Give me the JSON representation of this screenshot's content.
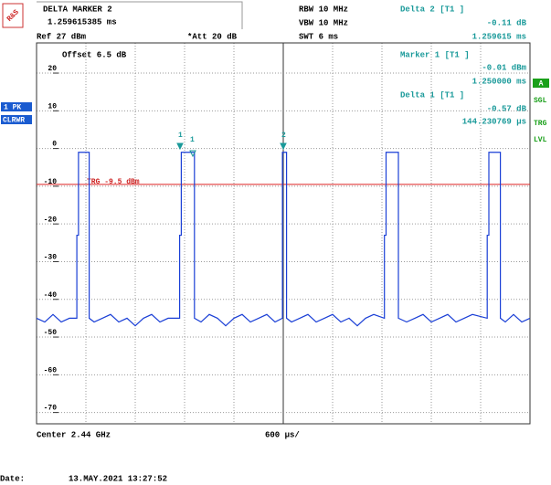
{
  "logo": "R&S",
  "header": {
    "marker_title": "DELTA MARKER 2",
    "marker_value": "1.259615385 ms",
    "rbw": "RBW 10 MHz",
    "vbw": "VBW 10 MHz",
    "swt": "SWT 6 ms",
    "ref": "Ref 27 dBm",
    "att": "*Att 20 dB",
    "offset": "Offset 6.5 dB"
  },
  "readouts": [
    "Delta 2 [T1 ]",
    "-0.11 dB",
    "1.259615 ms",
    "Marker 1 [T1 ]",
    "-0.01 dBm",
    "1.250000 ms",
    "Delta 1 [T1 ]",
    "-0.57 dB",
    "144.230769 µs"
  ],
  "side": {
    "trace_detector": "1 PK",
    "trace_mode": "CLRWR",
    "a": "A",
    "sgl": "SGL",
    "trg": "TRG",
    "lvl": "LVL"
  },
  "footer": {
    "center": "Center 2.44 GHz",
    "div": "600 µs/",
    "date_label": "Date:",
    "date": "13.MAY.2021 13:27:52"
  },
  "markers": [
    {
      "label": "1"
    },
    {
      "label": "1"
    },
    {
      "label": "2"
    }
  ],
  "chart_data": {
    "type": "line",
    "xlim": [
      0,
      6
    ],
    "ylim": [
      -73,
      28
    ],
    "yticks": [
      20,
      10,
      0,
      -10,
      -20,
      -30,
      -40,
      -50,
      -60,
      -70
    ],
    "trigger": {
      "label": "TRG -9.5 dBm",
      "level": -9.5,
      "color": "#dd2222"
    },
    "series": [
      {
        "color": "#1a3fd6",
        "x": [
          0,
          0.1,
          0.2,
          0.3,
          0.4,
          0.49,
          0.49,
          0.51,
          0.51,
          0.64,
          0.64,
          0.7,
          0.8,
          0.9,
          1.0,
          1.1,
          1.2,
          1.3,
          1.4,
          1.5,
          1.6,
          1.74,
          1.74,
          1.76,
          1.76,
          1.92,
          1.92,
          2.0,
          2.1,
          2.2,
          2.3,
          2.4,
          2.5,
          2.6,
          2.7,
          2.8,
          2.9,
          2.99,
          2.99,
          3.04,
          3.04,
          3.1,
          3.2,
          3.3,
          3.4,
          3.5,
          3.6,
          3.7,
          3.8,
          3.9,
          4.0,
          4.1,
          4.23,
          4.23,
          4.25,
          4.25,
          4.4,
          4.4,
          4.5,
          4.6,
          4.7,
          4.8,
          4.9,
          5.0,
          5.1,
          5.2,
          5.3,
          5.48,
          5.48,
          5.5,
          5.5,
          5.64,
          5.64,
          5.7,
          5.8,
          5.9,
          6.0
        ],
        "values": [
          -45,
          -46,
          -44,
          -46,
          -45,
          -45,
          -23,
          -23,
          -1,
          -1,
          -45,
          -46,
          -45,
          -44,
          -46,
          -45,
          -47,
          -45,
          -44,
          -46,
          -45,
          -45,
          -23,
          -23,
          -1,
          -1,
          -45,
          -46,
          -44,
          -45,
          -47,
          -45,
          -44,
          -46,
          -45,
          -44,
          -46,
          -45,
          -1,
          -1,
          -45,
          -46,
          -45,
          -44,
          -46,
          -45,
          -44,
          -46,
          -45,
          -47,
          -45,
          -44,
          -45,
          -23,
          -23,
          -1,
          -1,
          -45,
          -46,
          -45,
          -44,
          -46,
          -45,
          -44,
          -46,
          -45,
          -44,
          -45,
          -23,
          -23,
          -1,
          -1,
          -45,
          -46,
          -44,
          -46,
          -45
        ]
      }
    ]
  }
}
